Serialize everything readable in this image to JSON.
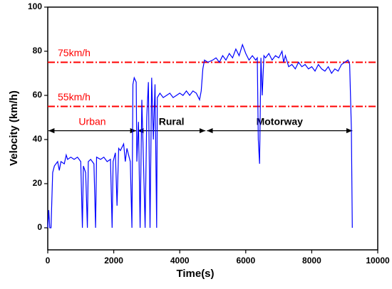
{
  "chart_data": {
    "type": "line",
    "xlabel": "Time(s)",
    "ylabel": "Velocity (km/h)",
    "xlim": [
      0,
      10000
    ],
    "xticks": [
      0,
      2000,
      4000,
      6000,
      8000,
      10000
    ],
    "ylim": [
      -10,
      100
    ],
    "yticks": [
      0,
      20,
      40,
      60,
      80,
      100
    ],
    "series": [
      {
        "color": "#0000ff",
        "x": [
          0,
          30,
          60,
          100,
          150,
          200,
          300,
          350,
          400,
          500,
          560,
          600,
          700,
          800,
          900,
          1000,
          1050,
          1080,
          1150,
          1200,
          1230,
          1300,
          1400,
          1450,
          1480,
          1600,
          1700,
          1800,
          1900,
          1950,
          1980,
          2050,
          2100,
          2150,
          2200,
          2300,
          2350,
          2400,
          2450,
          2500,
          2550,
          2580,
          2620,
          2680,
          2700,
          2750,
          2800,
          2850,
          2900,
          2950,
          3000,
          3050,
          3100,
          3150,
          3200,
          3250,
          3300,
          3320,
          3400,
          3500,
          3600,
          3700,
          3800,
          3900,
          4000,
          4100,
          4200,
          4300,
          4400,
          4500,
          4600,
          4650,
          4700,
          4750,
          4850,
          5000,
          5100,
          5200,
          5300,
          5400,
          5500,
          5600,
          5700,
          5800,
          5900,
          6000,
          6100,
          6200,
          6300,
          6350,
          6380,
          6420,
          6460,
          6500,
          6550,
          6600,
          6700,
          6800,
          6900,
          7000,
          7100,
          7150,
          7200,
          7300,
          7400,
          7500,
          7600,
          7700,
          7800,
          7900,
          8000,
          8100,
          8200,
          8300,
          8400,
          8500,
          8600,
          8700,
          8800,
          8900,
          9000,
          9100,
          9150,
          9200,
          9230
        ],
        "values": [
          0,
          8,
          0,
          0,
          25,
          28,
          30,
          26,
          30,
          29,
          33,
          31,
          32,
          31,
          32,
          30,
          0,
          28,
          25,
          0,
          30,
          31,
          29,
          0,
          32,
          31,
          32,
          30,
          31,
          0,
          30,
          34,
          10,
          36,
          35,
          38,
          30,
          36,
          33,
          30,
          0,
          65,
          68,
          66,
          30,
          48,
          0,
          58,
          30,
          0,
          50,
          66,
          0,
          68,
          40,
          65,
          0,
          59,
          61,
          59,
          60,
          61,
          59,
          60,
          61,
          60,
          62,
          60,
          62,
          61,
          58,
          62,
          72,
          76,
          75,
          76,
          77,
          75,
          78,
          76,
          79,
          77,
          81,
          78,
          83,
          79,
          76,
          78,
          76,
          77,
          40,
          29,
          77,
          60,
          78,
          77,
          79,
          76,
          78,
          77,
          80,
          75,
          78,
          73,
          74,
          72,
          75,
          73,
          74,
          72,
          73,
          71,
          74,
          72,
          71,
          73,
          70,
          72,
          71,
          74,
          75,
          76,
          74,
          45,
          0
        ]
      }
    ],
    "reference_lines": [
      {
        "value": 75,
        "label": "75km/h",
        "color": "#ff0000"
      },
      {
        "value": 55,
        "label": "55km/h",
        "color": "#ff0000"
      }
    ],
    "segments": [
      {
        "label": "Urban",
        "start": 0,
        "end": 2700,
        "y": 44,
        "color": "#ff0000"
      },
      {
        "label": "Rural",
        "start": 2700,
        "end": 4800,
        "y": 44,
        "color": "#000000"
      },
      {
        "label": "Motorway",
        "start": 4800,
        "end": 9250,
        "y": 44,
        "color": "#000000"
      }
    ]
  }
}
